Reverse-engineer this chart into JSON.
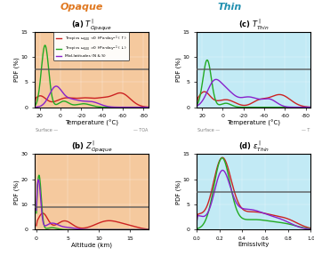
{
  "title_opaque": "Opaque",
  "title_thin": "Thin",
  "color_red": "#cc2222",
  "color_green": "#22aa22",
  "color_purple": "#8822cc",
  "bg_opaque": "#f5c99e",
  "bg_thin": "#c2eaf5",
  "hline_color": "#555555",
  "temp_xlim": [
    25,
    -85
  ],
  "temp_xticks": [
    20,
    0,
    -20,
    -40,
    -60,
    -80
  ],
  "alt_xlim": [
    -0.3,
    18
  ],
  "alt_xticks": [
    0,
    5,
    10,
    15
  ],
  "emiss_xlim": [
    0.0,
    1.0
  ],
  "emiss_xticks": [
    0.0,
    0.2,
    0.4,
    0.6,
    0.8,
    1.0
  ]
}
